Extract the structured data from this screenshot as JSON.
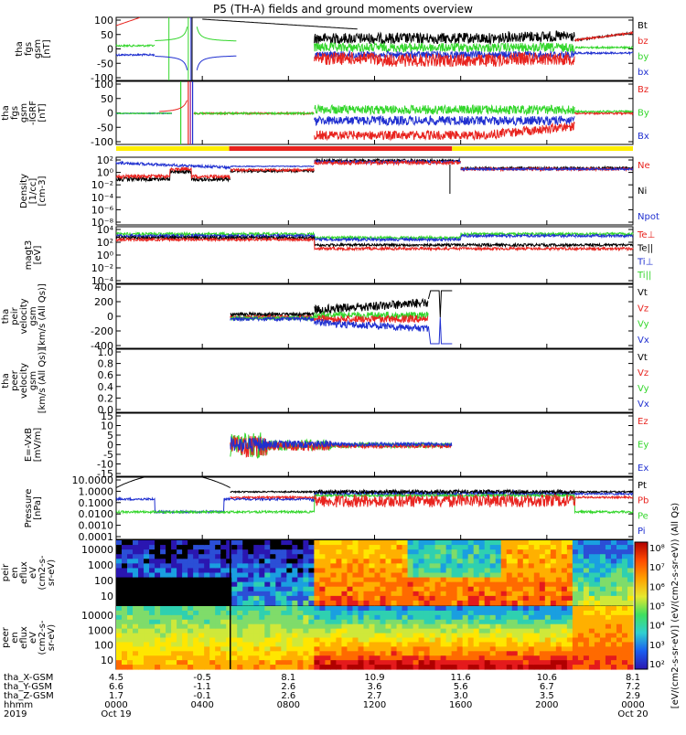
{
  "title": "P5 (TH-A) fields and ground moments overview",
  "colors": {
    "black": "#000000",
    "red": "#e8231e",
    "green": "#33d62b",
    "blue": "#1f2fd0",
    "yellow": "#ffee00",
    "purple": "#a0208f"
  },
  "chart_data": [
    {
      "id": "fgs",
      "type": "line",
      "ylabel": [
        "tha",
        "fgs",
        "gsm",
        "[nT]"
      ],
      "yticks": [
        "100",
        "50",
        "0",
        "-50",
        "-100"
      ],
      "ylim": [
        -100,
        100
      ],
      "series": [
        {
          "name": "Bt",
          "color": "black"
        },
        {
          "name": "bz",
          "color": "red"
        },
        {
          "name": "by",
          "color": "green"
        },
        {
          "name": "bx",
          "color": "blue"
        }
      ]
    },
    {
      "id": "fgs_igrf",
      "type": "line",
      "ylabel": [
        "tha",
        "fgs",
        "gsm",
        "-IGRF",
        "[nT]"
      ],
      "yticks": [
        "100",
        "50",
        "0",
        "-50",
        "-100"
      ],
      "ylim": [
        -125,
        100
      ],
      "series": [
        {
          "name": "Bz",
          "color": "red"
        },
        {
          "name": "By",
          "color": "green"
        },
        {
          "name": "Bx",
          "color": "blue"
        }
      ]
    },
    {
      "id": "density",
      "type": "line",
      "ylabel": [
        "Density",
        "[1/cc]",
        "[cm-3]"
      ],
      "yticks": [
        "10²",
        "10⁰",
        "10⁻²",
        "10⁻⁴",
        "10⁻⁶",
        "10⁻⁸"
      ],
      "yscale": "log",
      "series": [
        {
          "name": "Ne",
          "color": "red"
        },
        {
          "name": "Ni",
          "color": "black"
        },
        {
          "name": "Npot",
          "color": "blue"
        }
      ]
    },
    {
      "id": "temperature",
      "type": "line",
      "ylabel": [
        "magt3",
        "[eV]"
      ],
      "yticks": [
        "10⁴",
        "10²",
        "10⁰",
        "10⁻²",
        "10⁻⁴"
      ],
      "yscale": "log",
      "series": [
        {
          "name": "Te⊥",
          "color": "red"
        },
        {
          "name": "Te||",
          "color": "black"
        },
        {
          "name": "Ti⊥",
          "color": "blue"
        },
        {
          "name": "Ti||",
          "color": "green"
        }
      ]
    },
    {
      "id": "peir_velocity",
      "type": "line",
      "ylabel": [
        "tha",
        "peir",
        "velocity",
        "gsm",
        "[km/s (All Qs)]"
      ],
      "yticks": [
        "400",
        "200",
        "0",
        "-200",
        "-400"
      ],
      "ylim": [
        -400,
        400
      ],
      "series": [
        {
          "name": "Vt",
          "color": "black"
        },
        {
          "name": "Vz",
          "color": "red"
        },
        {
          "name": "Vy",
          "color": "green"
        },
        {
          "name": "Vx",
          "color": "blue"
        }
      ]
    },
    {
      "id": "peer_velocity",
      "type": "line",
      "ylabel": [
        "tha",
        "peer",
        "velocity",
        "gsm",
        "[km/s (All Qs)]"
      ],
      "yticks": [
        "1.0",
        "0.8",
        "0.6",
        "0.4",
        "0.2",
        "0.0"
      ],
      "ylim": [
        0,
        1
      ],
      "series": [
        {
          "name": "Vt",
          "color": "black"
        },
        {
          "name": "Vz",
          "color": "red"
        },
        {
          "name": "Vy",
          "color": "green"
        },
        {
          "name": "Vx",
          "color": "blue"
        }
      ]
    },
    {
      "id": "efield",
      "type": "line",
      "ylabel": [
        "E=-VxB",
        "[mV/m]"
      ],
      "yticks": [
        "15",
        "10",
        "5",
        "0",
        "-5",
        "-10",
        "-15"
      ],
      "ylim": [
        -15,
        15
      ],
      "series": [
        {
          "name": "Ez",
          "color": "red"
        },
        {
          "name": "Ey",
          "color": "green"
        },
        {
          "name": "Ex",
          "color": "blue"
        }
      ]
    },
    {
      "id": "pressure",
      "type": "line",
      "ylabel": [
        "Pressure",
        "[nPa]"
      ],
      "yticks": [
        "10.0000",
        "1.0000",
        "0.1000",
        "0.0100",
        "0.0010",
        "0.0001"
      ],
      "yscale": "log",
      "series": [
        {
          "name": "Pt",
          "color": "black"
        },
        {
          "name": "Pb",
          "color": "red"
        },
        {
          "name": "Pe",
          "color": "green"
        },
        {
          "name": "Pi",
          "color": "blue"
        }
      ]
    },
    {
      "id": "peir_spectrogram",
      "type": "heatmap",
      "ylabel": [
        "tha",
        "peir",
        "en",
        "eflux",
        "eV",
        "(cm2-s-",
        "sr-eV)"
      ],
      "yticks": [
        "10000",
        "1000",
        "100",
        "10"
      ],
      "yscale": "log"
    },
    {
      "id": "peer_spectrogram",
      "type": "heatmap",
      "ylabel": [
        "tha",
        "peer",
        "en",
        "eflux",
        "eV",
        "(cm2-s-",
        "sr-eV)"
      ],
      "yticks": [
        "10000",
        "1000",
        "100",
        "10"
      ],
      "yscale": "log"
    }
  ],
  "colorbar": {
    "ticks": [
      "10⁸",
      "10⁷",
      "10⁶",
      "10⁵",
      "10⁴",
      "10³",
      "10²"
    ],
    "label": "[eV/(cm2-s-sr-eV)] (eV/(cm2-s-sr-eV)) (All Qs)"
  },
  "xaxis": {
    "rows": [
      {
        "label": "tha_X-GSM",
        "values": [
          "4.5",
          "-0.5",
          "8.1",
          "10.9",
          "11.6",
          "10.6",
          "8.1"
        ]
      },
      {
        "label": "tha_Y-GSM",
        "values": [
          "6.6",
          "-1.1",
          "2.6",
          "3.6",
          "5.6",
          "6.7",
          "7.2"
        ]
      },
      {
        "label": "tha_Z-GSM",
        "values": [
          "1.7",
          "-0.1",
          "2.6",
          "2.7",
          "3.0",
          "3.5",
          "2.9"
        ]
      },
      {
        "label": "hhmm",
        "values": [
          "0000",
          "0400",
          "0800",
          "1200",
          "1600",
          "2000",
          "0000"
        ]
      },
      {
        "label": "2019",
        "values": [
          "Oct 19",
          "",
          "",
          "",
          "",
          "",
          "Oct 20"
        ]
      }
    ]
  }
}
